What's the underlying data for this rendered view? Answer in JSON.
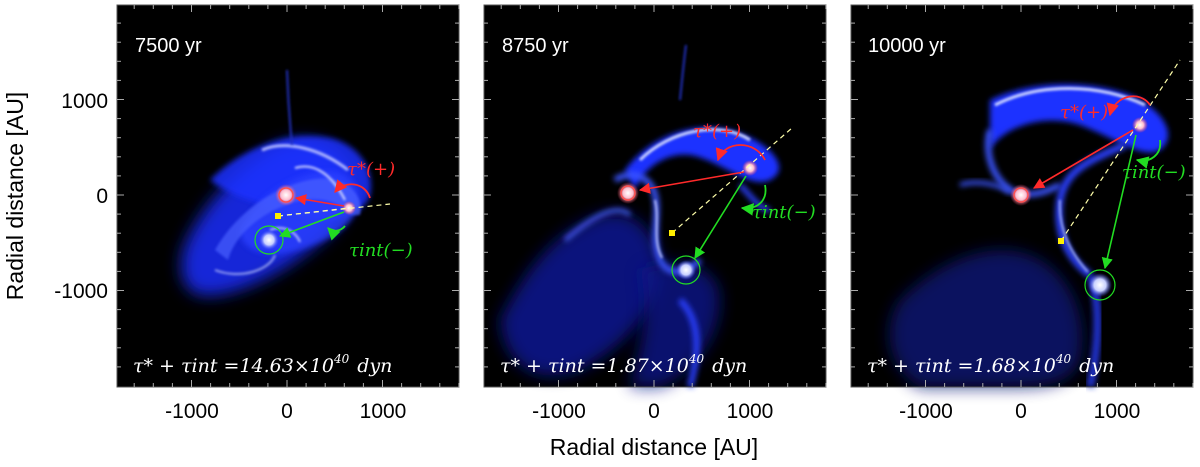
{
  "figure": {
    "x_axis_title": "Radial distance [AU]",
    "y_axis_title": "Radial distance [AU]",
    "x_ticks": [
      "-1000",
      "0",
      "1000"
    ],
    "y_ticks": [
      "1000",
      "0",
      "-1000"
    ],
    "colors": {
      "background": "#000000",
      "gas": "#1a33ff",
      "gas_highlight": "#ffffff",
      "torque_star": "#ff2a2a",
      "torque_int": "#22dd22",
      "center_of_mass": "#ffee00",
      "guide_line": "#ffffaa"
    }
  },
  "panels": [
    {
      "time": "7500 yr",
      "torque_star_label": "τ*(+)",
      "torque_int_label": "τint(−)",
      "sum_lhs": "τ* + τint =",
      "sum_value": "14.63×10",
      "sum_exp": "40",
      "sum_unit": "dyn"
    },
    {
      "time": "8750 yr",
      "torque_star_label": "τ*(+)",
      "torque_int_label": "τint(−)",
      "sum_lhs": "τ* + τint =",
      "sum_value": "1.87×10",
      "sum_exp": "40",
      "sum_unit": "dyn"
    },
    {
      "time": "10000 yr",
      "torque_star_label": "τ*(+)",
      "torque_int_label": "τint(−)",
      "sum_lhs": "τ* + τint =",
      "sum_value": "1.68×10",
      "sum_exp": "40",
      "sum_unit": "dyn"
    }
  ]
}
